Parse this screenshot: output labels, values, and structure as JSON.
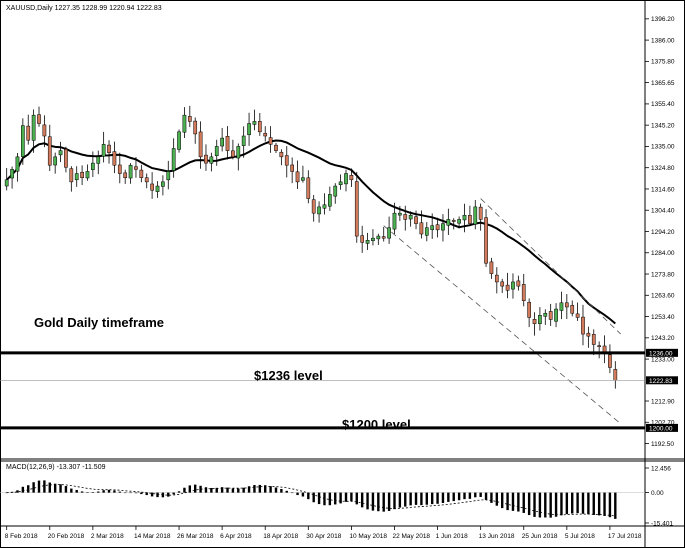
{
  "header": {
    "symbol_line": "XAUUSD,Daily  1227.35 1228.99 1220.94 1222.83",
    "macd_line": "MACD(12,26,9) -13.307 -11.509"
  },
  "annotations": {
    "title": "Gold Daily timeframe",
    "level_1236": "$1236 level",
    "level_1200": "$1200 level"
  },
  "colors": {
    "bull": "#4caf50",
    "bear": "#d27a5c",
    "ma": "#000000",
    "level_line": "#000000",
    "channel": "#555555"
  },
  "chart_data": [
    {
      "type": "candlestick",
      "symbol": "XAUUSD",
      "timeframe": "Daily",
      "ylim": [
        1187.0,
        1399.0
      ],
      "y_ticks": [
        "1396.20",
        "1386.00",
        "1375.80",
        "1365.65",
        "1355.40",
        "1345.20",
        "1335.00",
        "1324.80",
        "1314.60",
        "1304.40",
        "1294.20",
        "1284.00",
        "1273.80",
        "1263.60",
        "1253.40",
        "1243.20",
        "1233.00",
        "1212.90",
        "1202.70",
        "1192.50"
      ],
      "y_tick_values": [
        1396.2,
        1386.0,
        1375.8,
        1365.65,
        1355.4,
        1345.2,
        1335.0,
        1324.8,
        1314.6,
        1304.4,
        1294.2,
        1284.0,
        1273.8,
        1263.6,
        1253.4,
        1243.2,
        1233.0,
        1212.9,
        1202.7,
        1192.5
      ],
      "x_ticks": [
        "8 Feb 2018",
        "20 Feb 2018",
        "2 Mar 2018",
        "14 Mar 2018",
        "26 Mar 2018",
        "6 Apr 2018",
        "18 Apr 2018",
        "30 Apr 2018",
        "10 May 2018",
        "22 May 2018",
        "1 Jun 2018",
        "13 Jun 2018",
        "25 Jun 2018",
        "5 Jul 2018",
        "17 Jul 2018"
      ],
      "x_tick_index": [
        0,
        8,
        16,
        24,
        32,
        40,
        48,
        56,
        64,
        72,
        80,
        88,
        96,
        104,
        112
      ],
      "closes": [
        1319,
        1324,
        1330,
        1345,
        1338,
        1350,
        1346,
        1340,
        1326,
        1330,
        1333,
        1325,
        1318,
        1322,
        1320,
        1323,
        1327,
        1330,
        1336,
        1332,
        1326,
        1322,
        1320,
        1326,
        1324,
        1320,
        1318,
        1314,
        1316,
        1318,
        1323,
        1334,
        1342,
        1350,
        1347,
        1341,
        1330,
        1327,
        1330,
        1335,
        1339,
        1333,
        1330,
        1335,
        1340,
        1346,
        1347,
        1342,
        1340,
        1336,
        1333,
        1330,
        1326,
        1323,
        1318,
        1320,
        1310,
        1303,
        1306,
        1307,
        1312,
        1316,
        1318,
        1322,
        1319,
        1292,
        1289,
        1290,
        1291,
        1292,
        1291,
        1296,
        1303,
        1303,
        1300,
        1302,
        1298,
        1293,
        1296,
        1297,
        1295,
        1298,
        1300,
        1299,
        1300,
        1302,
        1298,
        1306,
        1300,
        1279,
        1274,
        1270,
        1268,
        1266,
        1270,
        1268,
        1261,
        1253,
        1250,
        1254,
        1255,
        1252,
        1257,
        1260,
        1258,
        1255,
        1253,
        1245,
        1244,
        1240,
        1239,
        1236,
        1229,
        1222.83
      ],
      "ma_period": 20,
      "levels": [
        {
          "label": "1236.00",
          "value": 1236.0
        },
        {
          "label": "1222.83",
          "value": 1222.83
        },
        {
          "label": "1200.00",
          "value": 1200.0
        }
      ],
      "trend_channel": {
        "upper": [
          [
            88,
            1310
          ],
          [
            114,
            1245
          ]
        ],
        "lower": [
          [
            70,
            1297
          ],
          [
            114,
            1202
          ]
        ]
      }
    },
    {
      "type": "bar",
      "name": "MACD(12,26,9)",
      "macd": -13.307,
      "signal": -11.509,
      "ylim": [
        -15.401,
        12.456
      ],
      "y_ticks": [
        "12.456",
        "0.00",
        "-15.401"
      ],
      "y_tick_values": [
        12.456,
        0,
        -15.401
      ]
    }
  ]
}
